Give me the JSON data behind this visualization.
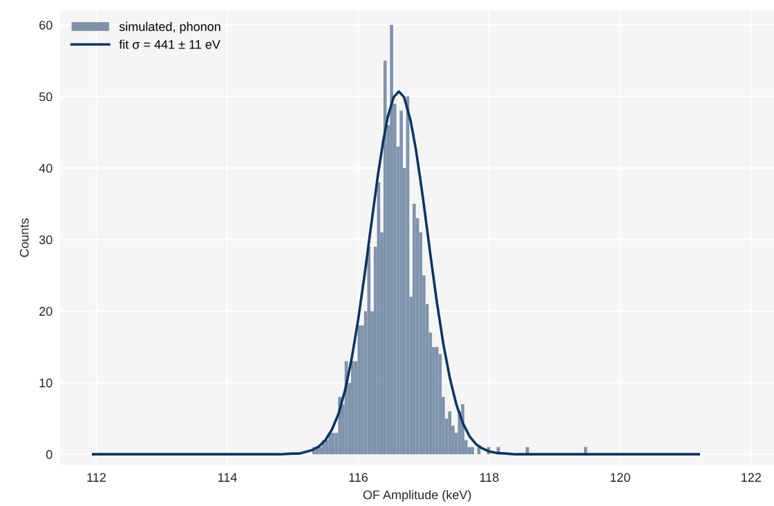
{
  "chart_data": {
    "type": "histogram",
    "xlabel": "OF Amplitude (keV)",
    "ylabel": "Counts",
    "xlim": [
      111.45,
      122.35
    ],
    "ylim": [
      -1.5,
      62
    ],
    "xticks": [
      112,
      114,
      116,
      118,
      120,
      122
    ],
    "yticks": [
      0,
      10,
      20,
      30,
      40,
      50,
      60
    ],
    "grid": true,
    "legend": "top left",
    "series": [
      {
        "name": "simulated, phonon",
        "color": "#7f93ab",
        "bins": [
          115.298,
          115.347,
          115.397,
          115.446,
          115.496,
          115.545,
          115.594,
          115.644,
          115.693,
          115.743,
          115.792,
          115.841,
          115.891,
          115.94,
          115.99,
          116.039,
          116.088,
          116.138,
          116.187,
          116.237,
          116.286,
          116.335,
          116.385,
          116.434,
          116.484,
          116.533,
          116.582,
          116.632,
          116.681,
          116.731,
          116.78,
          116.829,
          116.879,
          116.928,
          116.978,
          117.027,
          117.076,
          117.126,
          117.175,
          117.225,
          117.274,
          117.323,
          117.373,
          117.422,
          117.472,
          117.521,
          117.57,
          117.62,
          117.669,
          117.719,
          117.768,
          117.817,
          117.867,
          117.916,
          117.966,
          118.015,
          118.064,
          118.114,
          118.163,
          118.213,
          118.262,
          118.311,
          118.361,
          118.41,
          118.46,
          118.509,
          118.558,
          118.608,
          118.657,
          118.707,
          118.756,
          118.805,
          118.855,
          118.904,
          118.954,
          119.003,
          119.052,
          119.102,
          119.151,
          119.201,
          119.25,
          119.299,
          119.349,
          119.398,
          119.448,
          119.497
        ],
        "values": [
          1,
          1,
          1,
          2,
          2,
          3,
          3,
          3,
          8,
          7,
          13,
          10,
          13,
          13,
          18,
          18,
          20,
          29,
          20,
          29,
          38,
          31,
          55,
          46,
          60,
          49,
          43,
          48,
          40,
          50,
          22,
          35,
          33,
          31,
          25,
          21,
          17,
          15,
          15,
          14,
          8,
          5,
          6,
          4,
          3,
          6,
          7,
          2,
          1,
          1,
          0,
          1,
          0,
          0,
          1,
          0,
          0,
          1,
          0,
          0,
          0,
          0,
          0,
          0,
          0,
          0,
          1,
          0,
          0,
          0,
          0,
          0,
          0,
          0,
          0,
          0,
          0,
          0,
          0,
          0,
          0,
          0,
          0,
          0,
          1
        ]
      },
      {
        "type": "line",
        "name": "fit σ = 441 ± 11 eV",
        "color": "#0b3561",
        "x": [
          111.95,
          114.5,
          114.8,
          115.0,
          115.1,
          115.3,
          115.4,
          115.5,
          115.6,
          115.7,
          115.8,
          115.9,
          116.0,
          116.1,
          116.2,
          116.3,
          116.38,
          116.45,
          116.54,
          116.62,
          116.7,
          116.8,
          116.88,
          116.95,
          117.0,
          117.1,
          117.2,
          117.3,
          117.4,
          117.5,
          117.6,
          117.7,
          117.8,
          117.9,
          118.0,
          118.1,
          118.25,
          118.4,
          119.0,
          121.2
        ],
        "values": [
          0,
          0,
          0,
          0.1,
          0.1,
          0.6,
          1.1,
          2.0,
          3.5,
          5.7,
          9.0,
          13.4,
          18.9,
          25.3,
          32.2,
          39.0,
          43.7,
          47.1,
          49.9,
          50.7,
          49.9,
          46.6,
          42.6,
          38.3,
          35.0,
          28.0,
          21.3,
          15.4,
          10.6,
          6.9,
          4.3,
          2.5,
          1.4,
          0.8,
          0.4,
          0.2,
          0.1,
          0,
          0,
          0
        ]
      }
    ]
  }
}
